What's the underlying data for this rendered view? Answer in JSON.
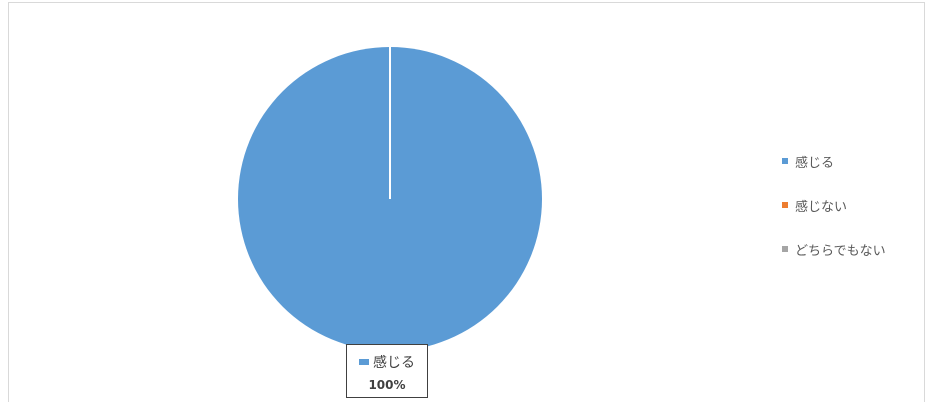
{
  "chart_data": {
    "type": "pie",
    "categories": [
      "感じる",
      "感じない",
      "どちらでもない"
    ],
    "values": [
      100,
      0,
      0
    ],
    "colors": [
      "#5b9bd5",
      "#ed7d31",
      "#a5a5a5"
    ],
    "legend_position": "right",
    "data_label": {
      "category": "感じる",
      "value": "100%"
    }
  }
}
